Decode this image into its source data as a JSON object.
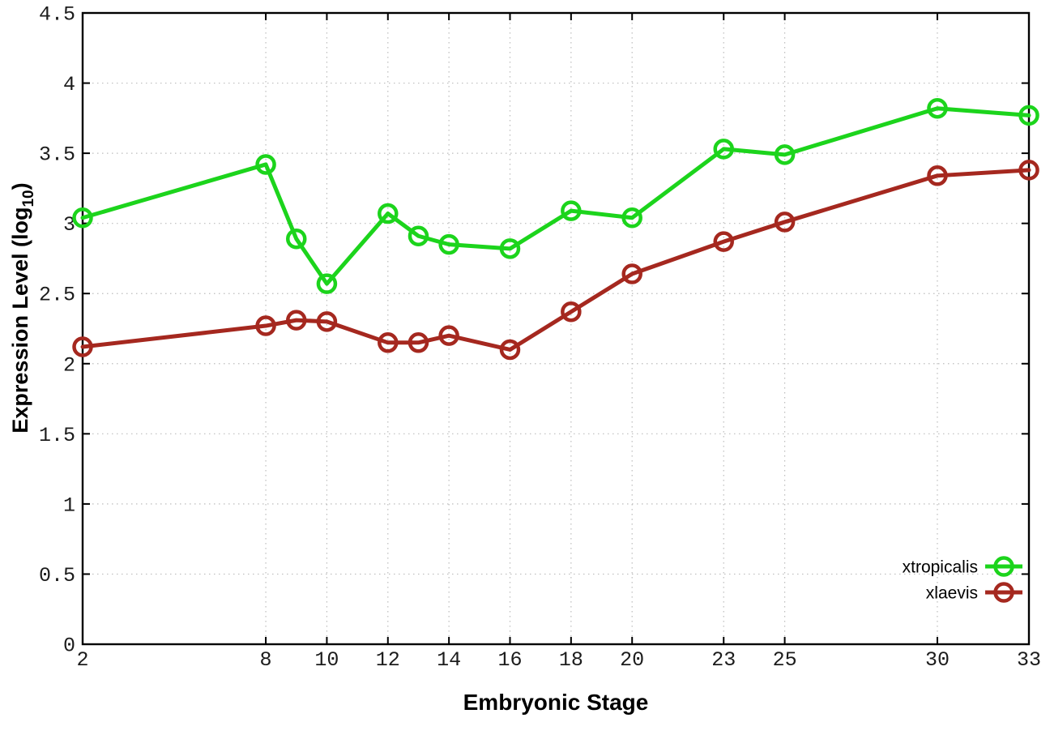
{
  "page": {
    "background": "#ffffff"
  },
  "chart_data": {
    "type": "line",
    "title": "",
    "xlabel": "Embryonic Stage",
    "ylabel": "Expression Level (log10)",
    "ylabel_rich": {
      "pre": "Expression Level (log",
      "sub": "10",
      "post": ")"
    },
    "x": [
      2,
      8,
      9,
      10,
      12,
      13,
      14,
      16,
      18,
      20,
      23,
      25,
      30,
      33
    ],
    "series": [
      {
        "name": "xtropicalis",
        "color": "#1cd41c",
        "values": [
          3.04,
          3.42,
          2.89,
          2.57,
          3.07,
          2.91,
          2.85,
          2.82,
          3.09,
          3.04,
          3.53,
          3.49,
          3.82,
          3.77
        ]
      },
      {
        "name": "xlaevis",
        "color": "#a5281f",
        "values": [
          2.12,
          2.27,
          2.31,
          2.3,
          2.15,
          2.15,
          2.2,
          2.1,
          2.37,
          2.64,
          2.87,
          3.01,
          3.34,
          3.38
        ]
      }
    ],
    "xticks": [
      2,
      8,
      10,
      12,
      14,
      16,
      18,
      20,
      23,
      25,
      30,
      33
    ],
    "xtick_labels": [
      "2",
      "8",
      "10",
      "12",
      "14",
      "16",
      "18",
      "20",
      "23",
      "25",
      "30",
      "33"
    ],
    "yticks": [
      0,
      0.5,
      1,
      1.5,
      2,
      2.5,
      3,
      3.5,
      4,
      4.5
    ],
    "ytick_labels": [
      "0",
      "0.5",
      "1",
      "1.5",
      "2",
      "2.5",
      "3",
      "3.5",
      "4",
      "4.5"
    ],
    "xlim": [
      2,
      33
    ],
    "ylim": [
      0,
      4.5
    ],
    "grid": true,
    "grid_color": "#bcbcbc",
    "axis_color": "#000000",
    "marker": "open-circle",
    "legend": {
      "position": "inside-bottom-right",
      "entries": [
        "xtropicalis",
        "xlaevis"
      ]
    }
  }
}
